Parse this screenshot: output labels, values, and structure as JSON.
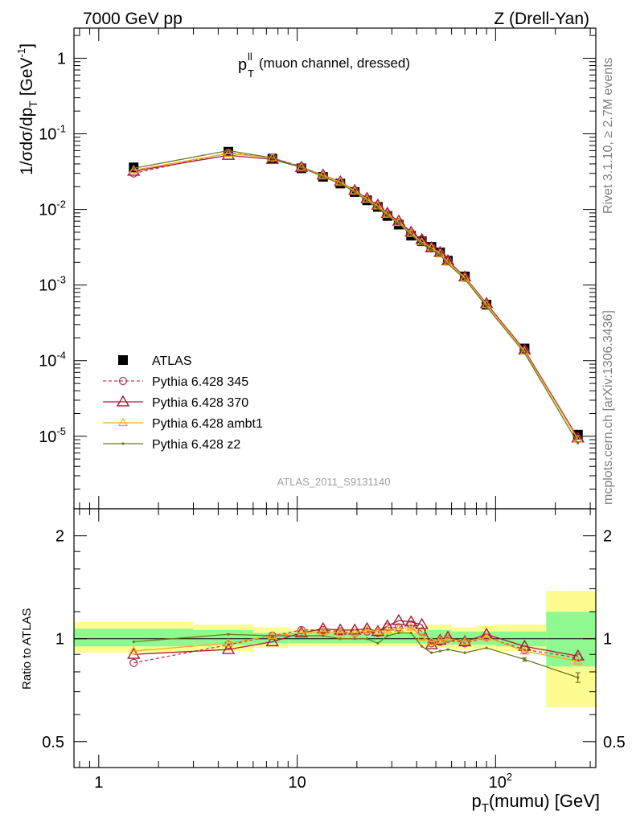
{
  "header": {
    "left": "7000 GeV pp",
    "right": "Z (Drell-Yan)"
  },
  "side_labels": {
    "rivet": "Rivet 3.1.10, ≥ 2.7M events",
    "mcplots": "mcplots.cern.ch [arXiv:1306.3436]"
  },
  "main_plot": {
    "title_main": "p",
    "title_sup": "ll",
    "title_sub": "T",
    "title_rest": " (muon channel, dressed)",
    "ylabel": "1/σdσ/dp_T [GeV^-1]",
    "analysis_id": "ATLAS_2011_S9131140",
    "y_tick_labels": [
      "1",
      "10^-1",
      "10^-2",
      "10^-3",
      "10^-4",
      "10^-5"
    ]
  },
  "ratio_plot": {
    "ylabel": "Ratio to ATLAS",
    "y_tick_labels": [
      "0.5",
      "1",
      "2"
    ],
    "y_tick_labels_right": [
      "0.5",
      "1",
      "2"
    ]
  },
  "x_axis": {
    "label": "p_T(mumu) [GeV]",
    "tick_labels": [
      "1",
      "10",
      "10^2"
    ]
  },
  "legend": [
    "ATLAS",
    "Pythia 6.428 345",
    "Pythia 6.428 370",
    "Pythia 6.428 ambt1",
    "Pythia 6.428 z2"
  ],
  "colors": {
    "data": "#000000",
    "p345": "#c0375a",
    "p370": "#a01c3c",
    "ambt1": "#f5a623",
    "z2": "#6b7a1e",
    "band_stat": "#90f890",
    "band_total": "#fcfc90"
  },
  "chart_data": {
    "type": "line",
    "x_scale": "log",
    "x_range": [
      0.75,
      320
    ],
    "main_y_scale": "log",
    "main_y_range": [
      1.1e-06,
      2.5
    ],
    "ratio_y_scale": "log",
    "ratio_y_range": [
      0.42,
      2.4
    ],
    "x": [
      1.5,
      4.5,
      7.5,
      10.5,
      13.5,
      16.5,
      19.5,
      22.5,
      25.5,
      28.5,
      32.5,
      37.5,
      42.5,
      47.5,
      52.5,
      57.5,
      70,
      90,
      140,
      260
    ],
    "bins": [
      [
        0,
        3
      ],
      [
        3,
        6
      ],
      [
        6,
        9
      ],
      [
        9,
        12
      ],
      [
        12,
        15
      ],
      [
        15,
        18
      ],
      [
        18,
        21
      ],
      [
        21,
        24
      ],
      [
        24,
        27
      ],
      [
        27,
        30
      ],
      [
        30,
        35
      ],
      [
        35,
        40
      ],
      [
        40,
        45
      ],
      [
        45,
        50
      ],
      [
        50,
        55
      ],
      [
        55,
        60
      ],
      [
        60,
        80
      ],
      [
        80,
        100
      ],
      [
        100,
        180
      ],
      [
        180,
        340
      ]
    ],
    "series": [
      {
        "name": "ATLAS",
        "key": "data",
        "values": [
          0.036,
          0.058,
          0.047,
          0.035,
          0.027,
          0.022,
          0.017,
          0.0132,
          0.0108,
          0.0082,
          0.0063,
          0.0045,
          0.0038,
          0.0032,
          0.0027,
          0.0021,
          0.0013,
          0.00055,
          0.000145,
          1.05e-05
        ]
      },
      {
        "name": "Pythia 6.428 345",
        "key": "p345",
        "values": [
          0.03,
          0.056,
          0.048,
          0.037,
          0.028,
          0.023,
          0.0175,
          0.0138,
          0.0112,
          0.0088,
          0.0068,
          0.0049,
          0.004,
          0.00315,
          0.00265,
          0.0021,
          0.00125,
          0.00055,
          0.000137,
          9.2e-06
        ]
      },
      {
        "name": "Pythia 6.428 370",
        "key": "p370",
        "values": [
          0.032,
          0.052,
          0.046,
          0.036,
          0.0285,
          0.0232,
          0.0178,
          0.014,
          0.0114,
          0.0089,
          0.007,
          0.005,
          0.004,
          0.0031,
          0.0027,
          0.0021,
          0.00128,
          0.00057,
          0.000138,
          9.5e-06
        ]
      },
      {
        "name": "Pythia 6.428 ambt1",
        "key": "ambt1",
        "values": [
          0.033,
          0.055,
          0.048,
          0.036,
          0.028,
          0.023,
          0.0175,
          0.0136,
          0.0111,
          0.0086,
          0.0067,
          0.0048,
          0.0037,
          0.0031,
          0.0026,
          0.002,
          0.00125,
          0.00055,
          0.000133,
          9.1e-06
        ]
      },
      {
        "name": "Pythia 6.428 z2",
        "key": "z2",
        "values": [
          0.035,
          0.06,
          0.048,
          0.036,
          0.027,
          0.022,
          0.017,
          0.013,
          0.0104,
          0.0083,
          0.0065,
          0.0046,
          0.0035,
          0.0029,
          0.0025,
          0.0019,
          0.0012,
          0.00052,
          0.000126,
          8.1e-06
        ]
      }
    ],
    "ratios": {
      "p345": [
        0.85,
        0.96,
        1.02,
        1.06,
        1.06,
        1.05,
        1.04,
        1.05,
        1.04,
        1.08,
        1.08,
        1.1,
        1.05,
        0.97,
        0.98,
        1.0,
        0.97,
        1.01,
        0.93,
        0.88
      ],
      "p370": [
        0.9,
        0.93,
        0.98,
        1.04,
        1.07,
        1.06,
        1.06,
        1.07,
        1.05,
        1.09,
        1.13,
        1.12,
        1.1,
        0.96,
        0.99,
        1.01,
        0.98,
        1.03,
        0.95,
        0.89
      ],
      "ambt1": [
        0.92,
        0.97,
        1.02,
        1.04,
        1.05,
        1.04,
        1.04,
        1.06,
        1.05,
        1.06,
        1.07,
        1.08,
        1.01,
        0.98,
        0.99,
        1.0,
        0.98,
        1.01,
        0.92,
        0.86
      ],
      "z2": [
        0.98,
        1.03,
        1.02,
        1.02,
        1.02,
        1.0,
        1.0,
        1.0,
        0.97,
        1.02,
        1.04,
        1.04,
        0.95,
        0.91,
        0.92,
        0.93,
        0.91,
        0.94,
        0.87,
        0.77
      ]
    },
    "ratio_z2_error": [
      0,
      0,
      0,
      0,
      0,
      0,
      0,
      0,
      0,
      0,
      0,
      0,
      0,
      0,
      0,
      0,
      0,
      0,
      0.01,
      0.025
    ],
    "band_total": [
      [
        0.91,
        1.12
      ],
      [
        0.92,
        1.1
      ],
      [
        0.94,
        1.08
      ],
      [
        0.95,
        1.07
      ],
      [
        0.95,
        1.07
      ],
      [
        0.95,
        1.07
      ],
      [
        0.95,
        1.07
      ],
      [
        0.95,
        1.07
      ],
      [
        0.95,
        1.07
      ],
      [
        0.95,
        1.07
      ],
      [
        0.95,
        1.07
      ],
      [
        0.95,
        1.07
      ],
      [
        0.95,
        1.09
      ],
      [
        0.94,
        1.1
      ],
      [
        0.94,
        1.1
      ],
      [
        0.94,
        1.1
      ],
      [
        0.93,
        1.08
      ],
      [
        0.93,
        1.09
      ],
      [
        0.92,
        1.1
      ],
      [
        0.63,
        1.38
      ]
    ],
    "band_stat": [
      [
        0.95,
        1.07
      ],
      [
        0.96,
        1.06
      ],
      [
        0.97,
        1.04
      ],
      [
        0.97,
        1.04
      ],
      [
        0.97,
        1.04
      ],
      [
        0.97,
        1.04
      ],
      [
        0.97,
        1.04
      ],
      [
        0.97,
        1.04
      ],
      [
        0.97,
        1.04
      ],
      [
        0.97,
        1.04
      ],
      [
        0.97,
        1.04
      ],
      [
        0.97,
        1.04
      ],
      [
        0.97,
        1.05
      ],
      [
        0.96,
        1.06
      ],
      [
        0.96,
        1.06
      ],
      [
        0.96,
        1.06
      ],
      [
        0.96,
        1.05
      ],
      [
        0.96,
        1.05
      ],
      [
        0.95,
        1.05
      ],
      [
        0.83,
        1.2
      ]
    ]
  }
}
